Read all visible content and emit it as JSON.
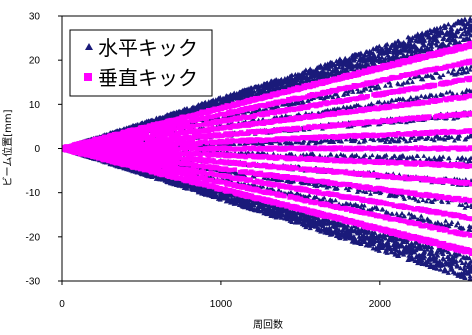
{
  "chart_data": {
    "type": "scatter",
    "title": "",
    "xlabel": "周回数",
    "ylabel": "ビーム位置[mm]",
    "xlim": [
      0,
      2600
    ],
    "ylim": [
      -30,
      30
    ],
    "x_ticks": [
      0,
      1000,
      2000
    ],
    "y_ticks": [
      30,
      20,
      10,
      0,
      -10,
      -20,
      -30
    ],
    "grid": false,
    "legend_position": "top-left",
    "series": [
      {
        "name": "水平キック",
        "marker": "triangle",
        "color": "#1a1a7a",
        "envelope_slope_mm_per_turn": 0.0116
      },
      {
        "name": "垂直キック",
        "marker": "square",
        "color": "#ff00ff",
        "envelope_slope_mm_per_turn": 0.0092
      }
    ]
  }
}
